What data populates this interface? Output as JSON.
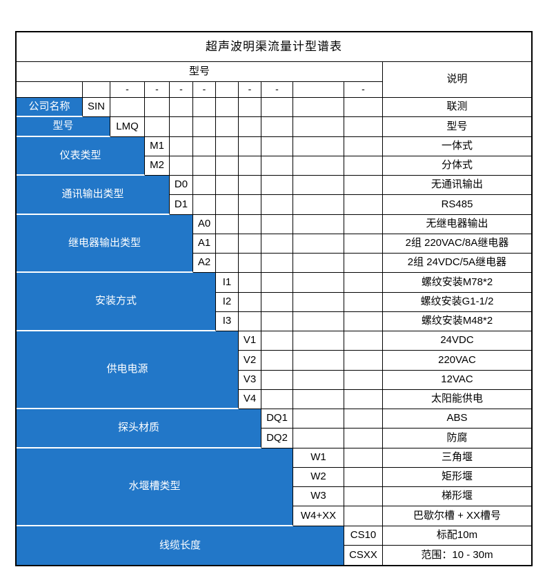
{
  "title": "超声波明渠流量计型谱表",
  "header": {
    "model_label": "型号",
    "description_label": "说明"
  },
  "separator": {
    "dash": "-"
  },
  "colors": {
    "accent_blue": "#2277C8",
    "border_black": "#000000",
    "text_on_blue": "#FFFFFF"
  },
  "groups": [
    {
      "label": "公司名称",
      "rows": [
        {
          "code": "SIN",
          "description": "联测"
        }
      ]
    },
    {
      "label": "型号",
      "rows": [
        {
          "code": "LMQ",
          "description": "型号"
        }
      ]
    },
    {
      "label": "仪表类型",
      "rows": [
        {
          "code": "M1",
          "description": "一体式"
        },
        {
          "code": "M2",
          "description": "分体式"
        }
      ]
    },
    {
      "label": "通讯输出类型",
      "rows": [
        {
          "code": "D0",
          "description": "无通讯输出"
        },
        {
          "code": "D1",
          "description": "RS485"
        }
      ]
    },
    {
      "label": "继电器输出类型",
      "rows": [
        {
          "code": "A0",
          "description": "无继电器输出"
        },
        {
          "code": "A1",
          "description": "2组 220VAC/8A继电器"
        },
        {
          "code": "A2",
          "description": "2组 24VDC/5A继电器"
        }
      ]
    },
    {
      "label": "安装方式",
      "rows": [
        {
          "code": "I1",
          "description": "螺纹安装M78*2"
        },
        {
          "code": "I2",
          "description": "螺纹安装G1-1/2"
        },
        {
          "code": "I3",
          "description": "螺纹安装M48*2"
        }
      ]
    },
    {
      "label": "供电电源",
      "rows": [
        {
          "code": "V1",
          "description": "24VDC"
        },
        {
          "code": "V2",
          "description": "220VAC"
        },
        {
          "code": "V3",
          "description": "12VAC"
        },
        {
          "code": "V4",
          "description": "太阳能供电"
        }
      ]
    },
    {
      "label": "探头材质",
      "rows": [
        {
          "code": "DQ1",
          "description": "ABS"
        },
        {
          "code": "DQ2",
          "description": "防腐"
        }
      ]
    },
    {
      "label": "水堰槽类型",
      "rows": [
        {
          "code": "W1",
          "description": "三角堰"
        },
        {
          "code": "W2",
          "description": "矩形堰"
        },
        {
          "code": "W3",
          "description": "梯形堰"
        },
        {
          "code": "W4+XX",
          "description": "巴歇尔槽 + XX槽号"
        }
      ]
    },
    {
      "label": "线缆长度",
      "rows": [
        {
          "code": "CS10",
          "description": "标配10m"
        },
        {
          "code": "CSXX",
          "description": "范围：10 - 30m"
        }
      ]
    }
  ]
}
